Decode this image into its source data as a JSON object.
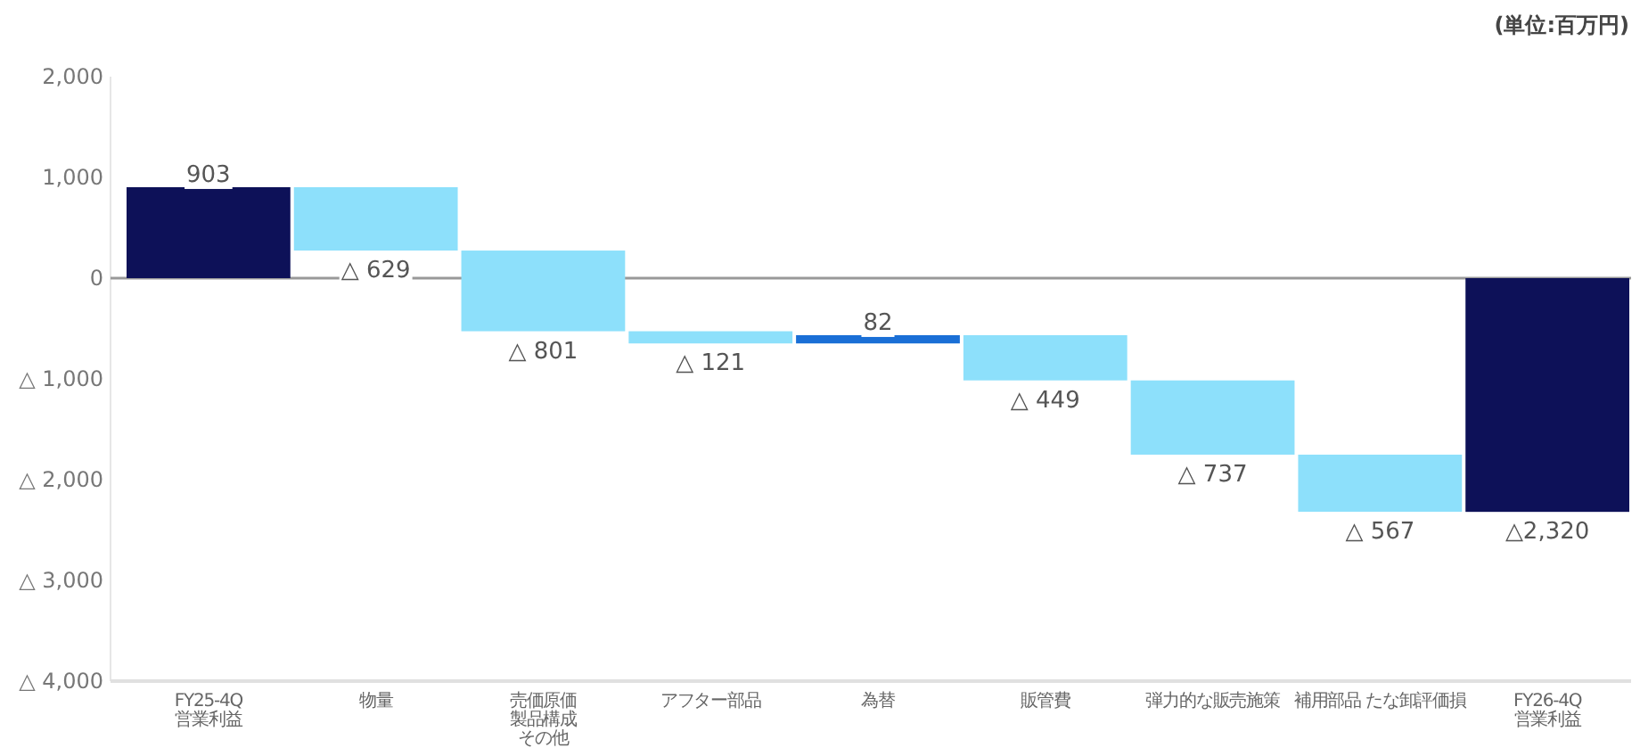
{
  "chart_data": {
    "type": "bar",
    "categories": [
      "FY25-4Q\n営業利益",
      "物量",
      "売価原価製品構成その他",
      "アフター部品",
      "為替",
      "販管費",
      "弾力的な販売施策",
      "補用部品 たな卸評価損",
      "FY26-4Q\n営業利益"
    ],
    "values": [
      903,
      -629,
      -801,
      -121,
      82,
      -449,
      -737,
      -567,
      -2320
    ],
    "base": [
      0,
      903,
      274,
      -527,
      -648,
      -566,
      -1015,
      -1752,
      0
    ],
    "colors": [
      "#0d1158",
      "#8de0fb",
      "#8de0fb",
      "#8de0fb",
      "#1a6fd6",
      "#8de0fb",
      "#8de0fb",
      "#8de0fb",
      "#0d1158"
    ],
    "value_labels": [
      "903",
      "△ 629",
      "△ 801",
      "△ 121",
      "82",
      "△ 449",
      "△ 737",
      "△ 567",
      "△2,320"
    ],
    "ylim": [
      -4000,
      2000
    ],
    "yticks": [
      {
        "value": 2000,
        "label": "2,000"
      },
      {
        "value": 1000,
        "label": "1,000"
      },
      0,
      {
        "value": -1000,
        "label": "△ 1,000"
      },
      {
        "value": -2000,
        "label": "△ 2,000"
      },
      {
        "value": -3000,
        "label": "△ 3,000"
      },
      {
        "value": -4000,
        "label": "△ 4,000"
      }
    ],
    "annotations": [
      "(単位:百万円)"
    ]
  }
}
